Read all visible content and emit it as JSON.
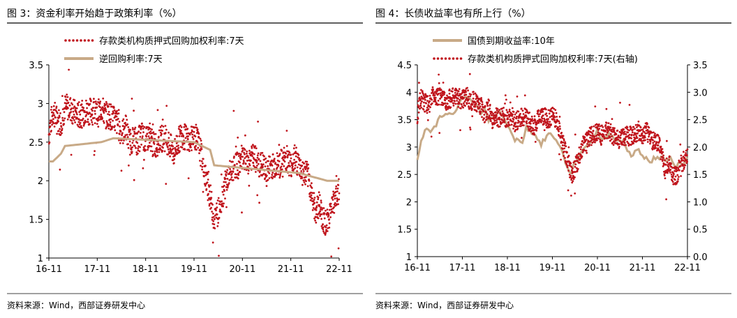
{
  "colors": {
    "dots": "#c0141c",
    "line": "#c8aa87",
    "axis": "#000000",
    "title_bar": "#000000"
  },
  "chart_data": [
    {
      "type": "line",
      "title": "图 3：资金利率开始趋于政策利率（%）",
      "source": "资料来源：Wind，西部证券研发中心",
      "x_ticks": [
        "16-11",
        "17-11",
        "18-11",
        "19-11",
        "20-11",
        "21-11",
        "22-11"
      ],
      "xlim": [
        "2016-11",
        "2022-11"
      ],
      "y_ticks": [
        "1",
        "1.5",
        "2",
        "2.5",
        "3",
        "3.5"
      ],
      "ylim": [
        1,
        3.5
      ],
      "legend_position": "top-left",
      "series": [
        {
          "name": "存款类机构质押式回购加权利率:7天",
          "style": "dotted",
          "points": [
            [
              "2016-11",
              2.6
            ],
            [
              "2016-12",
              2.9
            ],
            [
              "2017-01",
              2.8
            ],
            [
              "2017-02",
              2.75
            ],
            [
              "2017-03",
              2.95
            ],
            [
              "2017-04",
              2.95
            ],
            [
              "2017-05",
              2.9
            ],
            [
              "2017-06",
              2.85
            ],
            [
              "2017-07",
              2.85
            ],
            [
              "2017-08",
              2.9
            ],
            [
              "2017-09",
              2.9
            ],
            [
              "2017-10",
              2.9
            ],
            [
              "2017-11",
              2.85
            ],
            [
              "2017-12",
              2.95
            ],
            [
              "2018-01",
              2.85
            ],
            [
              "2018-02",
              2.85
            ],
            [
              "2018-03",
              2.8
            ],
            [
              "2018-04",
              2.75
            ],
            [
              "2018-05",
              2.6
            ],
            [
              "2018-06",
              2.7
            ],
            [
              "2018-07",
              2.5
            ],
            [
              "2018-08",
              2.55
            ],
            [
              "2018-09",
              2.5
            ],
            [
              "2018-10",
              2.6
            ],
            [
              "2018-11",
              2.5
            ],
            [
              "2018-12",
              2.6
            ],
            [
              "2019-01",
              2.45
            ],
            [
              "2019-02",
              2.5
            ],
            [
              "2019-03",
              2.55
            ],
            [
              "2019-04",
              2.55
            ],
            [
              "2019-05",
              2.45
            ],
            [
              "2019-06",
              2.35
            ],
            [
              "2019-07",
              2.5
            ],
            [
              "2019-08",
              2.6
            ],
            [
              "2019-09",
              2.55
            ],
            [
              "2019-10",
              2.5
            ],
            [
              "2019-11",
              2.6
            ],
            [
              "2019-12",
              2.5
            ],
            [
              "2020-01",
              2.3
            ],
            [
              "2020-02",
              2.0
            ],
            [
              "2020-03",
              1.8
            ],
            [
              "2020-04",
              1.5
            ],
            [
              "2020-05",
              1.6
            ],
            [
              "2020-06",
              1.8
            ],
            [
              "2020-07",
              2.0
            ],
            [
              "2020-08",
              2.1
            ],
            [
              "2020-09",
              2.2
            ],
            [
              "2020-10",
              2.2
            ],
            [
              "2020-11",
              2.3
            ],
            [
              "2020-12",
              2.2
            ],
            [
              "2021-01",
              2.3
            ],
            [
              "2021-02",
              2.3
            ],
            [
              "2021-03",
              2.2
            ],
            [
              "2021-04",
              2.2
            ],
            [
              "2021-05",
              2.1
            ],
            [
              "2021-06",
              2.2
            ],
            [
              "2021-07",
              2.2
            ],
            [
              "2021-08",
              2.2
            ],
            [
              "2021-09",
              2.25
            ],
            [
              "2021-10",
              2.3
            ],
            [
              "2021-11",
              2.2
            ],
            [
              "2021-12",
              2.3
            ],
            [
              "2022-01",
              2.2
            ],
            [
              "2022-02",
              2.1
            ],
            [
              "2022-03",
              2.1
            ],
            [
              "2022-04",
              1.9
            ],
            [
              "2022-05",
              1.6
            ],
            [
              "2022-06",
              1.7
            ],
            [
              "2022-07",
              1.5
            ],
            [
              "2022-08",
              1.45
            ],
            [
              "2022-09",
              1.65
            ],
            [
              "2022-10",
              1.75
            ],
            [
              "2022-11",
              1.9
            ]
          ]
        },
        {
          "name": "逆回购利率:7天",
          "style": "solid",
          "points": [
            [
              "2016-11",
              2.25
            ],
            [
              "2016-12",
              2.25
            ],
            [
              "2017-02",
              2.35
            ],
            [
              "2017-03",
              2.45
            ],
            [
              "2017-12",
              2.5
            ],
            [
              "2018-03",
              2.55
            ],
            [
              "2019-11",
              2.5
            ],
            [
              "2020-03",
              2.4
            ],
            [
              "2020-04",
              2.2
            ],
            [
              "2022-01",
              2.1
            ],
            [
              "2022-08",
              2.0
            ],
            [
              "2022-11",
              2.0
            ]
          ]
        }
      ]
    },
    {
      "type": "line",
      "title": "图 4：长债收益率也有所上行（%）",
      "source": "资料来源：Wind，西部证券研发中心",
      "x_ticks": [
        "16-11",
        "17-11",
        "18-11",
        "19-11",
        "20-11",
        "21-11",
        "22-11"
      ],
      "xlim": [
        "2016-11",
        "2022-11"
      ],
      "y_ticks_left": [
        "1",
        "1.5",
        "2",
        "2.5",
        "3",
        "3.5",
        "4",
        "4.5"
      ],
      "ylim_left": [
        1,
        4.5
      ],
      "y_ticks_right": [
        "0.0",
        "0.5",
        "1.0",
        "1.5",
        "2.0",
        "2.5",
        "3.0",
        "3.5"
      ],
      "ylim_right": [
        0,
        3.5
      ],
      "legend_position": "top-left",
      "series": [
        {
          "name": "国债到期收益率:10年",
          "axis": "left",
          "style": "solid",
          "points": [
            [
              "2016-11",
              2.8
            ],
            [
              "2016-12",
              3.1
            ],
            [
              "2017-01",
              3.3
            ],
            [
              "2017-02",
              3.3
            ],
            [
              "2017-03",
              3.3
            ],
            [
              "2017-04",
              3.4
            ],
            [
              "2017-05",
              3.6
            ],
            [
              "2017-06",
              3.55
            ],
            [
              "2017-07",
              3.6
            ],
            [
              "2017-08",
              3.6
            ],
            [
              "2017-09",
              3.6
            ],
            [
              "2017-10",
              3.75
            ],
            [
              "2017-11",
              3.9
            ],
            [
              "2017-12",
              3.9
            ],
            [
              "2018-01",
              3.9
            ],
            [
              "2018-02",
              3.85
            ],
            [
              "2018-03",
              3.75
            ],
            [
              "2018-04",
              3.6
            ],
            [
              "2018-05",
              3.65
            ],
            [
              "2018-06",
              3.5
            ],
            [
              "2018-07",
              3.5
            ],
            [
              "2018-08",
              3.6
            ],
            [
              "2018-09",
              3.65
            ],
            [
              "2018-10",
              3.55
            ],
            [
              "2018-11",
              3.4
            ],
            [
              "2018-12",
              3.25
            ],
            [
              "2019-01",
              3.1
            ],
            [
              "2019-02",
              3.15
            ],
            [
              "2019-03",
              3.1
            ],
            [
              "2019-04",
              3.35
            ],
            [
              "2019-05",
              3.3
            ],
            [
              "2019-06",
              3.25
            ],
            [
              "2019-07",
              3.15
            ],
            [
              "2019-08",
              3.05
            ],
            [
              "2019-09",
              3.15
            ],
            [
              "2019-10",
              3.25
            ],
            [
              "2019-11",
              3.2
            ],
            [
              "2019-12",
              3.15
            ],
            [
              "2020-01",
              3.0
            ],
            [
              "2020-02",
              2.85
            ],
            [
              "2020-03",
              2.6
            ],
            [
              "2020-04",
              2.55
            ],
            [
              "2020-05",
              2.7
            ],
            [
              "2020-06",
              2.85
            ],
            [
              "2020-07",
              2.95
            ],
            [
              "2020-08",
              3.0
            ],
            [
              "2020-09",
              3.1
            ],
            [
              "2020-10",
              3.2
            ],
            [
              "2020-11",
              3.3
            ],
            [
              "2020-12",
              3.15
            ],
            [
              "2021-01",
              3.15
            ],
            [
              "2021-02",
              3.25
            ],
            [
              "2021-03",
              3.2
            ],
            [
              "2021-04",
              3.15
            ],
            [
              "2021-05",
              3.1
            ],
            [
              "2021-06",
              3.1
            ],
            [
              "2021-07",
              2.95
            ],
            [
              "2021-08",
              2.85
            ],
            [
              "2021-09",
              2.9
            ],
            [
              "2021-10",
              2.95
            ],
            [
              "2021-11",
              2.85
            ],
            [
              "2021-12",
              2.8
            ],
            [
              "2022-01",
              2.7
            ],
            [
              "2022-02",
              2.8
            ],
            [
              "2022-03",
              2.8
            ],
            [
              "2022-04",
              2.8
            ],
            [
              "2022-05",
              2.75
            ],
            [
              "2022-06",
              2.8
            ],
            [
              "2022-07",
              2.75
            ],
            [
              "2022-08",
              2.65
            ],
            [
              "2022-09",
              2.7
            ],
            [
              "2022-10",
              2.7
            ],
            [
              "2022-11",
              2.8
            ]
          ]
        },
        {
          "name": "存款类机构质押式回购加权利率:7天(右轴)",
          "axis": "right",
          "style": "dotted",
          "points": [
            [
              "2016-11",
              2.6
            ],
            [
              "2016-12",
              2.9
            ],
            [
              "2017-01",
              2.8
            ],
            [
              "2017-02",
              2.75
            ],
            [
              "2017-03",
              2.95
            ],
            [
              "2017-04",
              2.95
            ],
            [
              "2017-05",
              2.9
            ],
            [
              "2017-06",
              2.85
            ],
            [
              "2017-07",
              2.85
            ],
            [
              "2017-08",
              2.9
            ],
            [
              "2017-09",
              2.9
            ],
            [
              "2017-10",
              2.9
            ],
            [
              "2017-11",
              2.85
            ],
            [
              "2017-12",
              2.95
            ],
            [
              "2018-01",
              2.85
            ],
            [
              "2018-02",
              2.85
            ],
            [
              "2018-03",
              2.8
            ],
            [
              "2018-04",
              2.75
            ],
            [
              "2018-05",
              2.6
            ],
            [
              "2018-06",
              2.7
            ],
            [
              "2018-07",
              2.5
            ],
            [
              "2018-08",
              2.55
            ],
            [
              "2018-09",
              2.5
            ],
            [
              "2018-10",
              2.6
            ],
            [
              "2018-11",
              2.5
            ],
            [
              "2018-12",
              2.6
            ],
            [
              "2019-01",
              2.45
            ],
            [
              "2019-02",
              2.5
            ],
            [
              "2019-03",
              2.55
            ],
            [
              "2019-04",
              2.55
            ],
            [
              "2019-05",
              2.45
            ],
            [
              "2019-06",
              2.35
            ],
            [
              "2019-07",
              2.5
            ],
            [
              "2019-08",
              2.6
            ],
            [
              "2019-09",
              2.55
            ],
            [
              "2019-10",
              2.5
            ],
            [
              "2019-11",
              2.6
            ],
            [
              "2019-12",
              2.5
            ],
            [
              "2020-01",
              2.3
            ],
            [
              "2020-02",
              2.0
            ],
            [
              "2020-03",
              1.8
            ],
            [
              "2020-04",
              1.5
            ],
            [
              "2020-05",
              1.6
            ],
            [
              "2020-06",
              1.8
            ],
            [
              "2020-07",
              2.0
            ],
            [
              "2020-08",
              2.1
            ],
            [
              "2020-09",
              2.2
            ],
            [
              "2020-10",
              2.2
            ],
            [
              "2020-11",
              2.3
            ],
            [
              "2020-12",
              2.2
            ],
            [
              "2021-01",
              2.3
            ],
            [
              "2021-02",
              2.3
            ],
            [
              "2021-03",
              2.2
            ],
            [
              "2021-04",
              2.2
            ],
            [
              "2021-05",
              2.1
            ],
            [
              "2021-06",
              2.2
            ],
            [
              "2021-07",
              2.2
            ],
            [
              "2021-08",
              2.2
            ],
            [
              "2021-09",
              2.25
            ],
            [
              "2021-10",
              2.3
            ],
            [
              "2021-11",
              2.2
            ],
            [
              "2021-12",
              2.3
            ],
            [
              "2022-01",
              2.2
            ],
            [
              "2022-02",
              2.1
            ],
            [
              "2022-03",
              2.1
            ],
            [
              "2022-04",
              1.9
            ],
            [
              "2022-05",
              1.6
            ],
            [
              "2022-06",
              1.7
            ],
            [
              "2022-07",
              1.5
            ],
            [
              "2022-08",
              1.45
            ],
            [
              "2022-09",
              1.65
            ],
            [
              "2022-10",
              1.75
            ],
            [
              "2022-11",
              1.9
            ]
          ]
        }
      ]
    }
  ]
}
